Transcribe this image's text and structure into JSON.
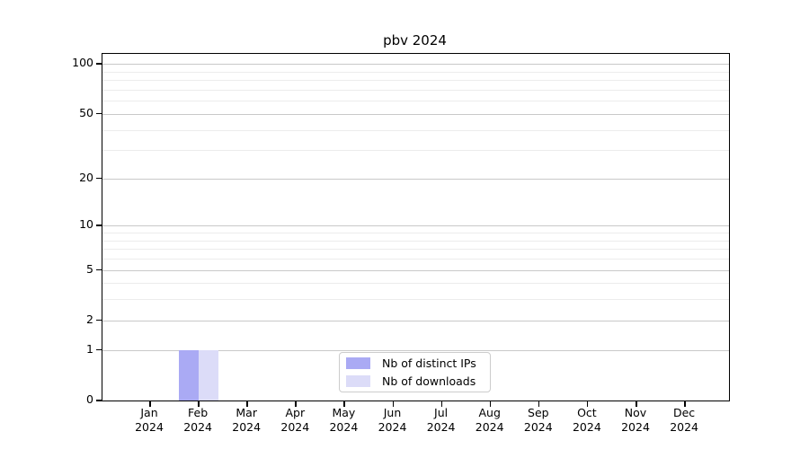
{
  "title": "pbv 2024",
  "chart_data": {
    "type": "bar",
    "title": "pbv 2024",
    "categories": [
      "Jan",
      "Feb",
      "Mar",
      "Apr",
      "May",
      "Jun",
      "Jul",
      "Aug",
      "Sep",
      "Oct",
      "Nov",
      "Dec"
    ],
    "year_label": "2024",
    "series": [
      {
        "name": "Nb of distinct IPs",
        "color": "#aaaaf4",
        "values": [
          0,
          1,
          0,
          0,
          0,
          0,
          0,
          0,
          0,
          0,
          0,
          0
        ]
      },
      {
        "name": "Nb of downloads",
        "color": "#dcdcf8",
        "values": [
          0,
          1,
          0,
          0,
          0,
          0,
          0,
          0,
          0,
          0,
          0,
          0
        ]
      }
    ],
    "yscale": "log1p",
    "ylim": [
      0,
      115
    ],
    "y_major_ticks": [
      0,
      1,
      2,
      5,
      10,
      20,
      50,
      100
    ],
    "y_minor_ticks": [
      3,
      4,
      6,
      7,
      8,
      9,
      30,
      40,
      60,
      70,
      80,
      90
    ],
    "grid": "horizontal",
    "legend_position": "lower center"
  },
  "colors": {
    "grid_major": "#c9c9c9",
    "grid_minor": "#ececec",
    "axis": "#000000",
    "legend_border": "#cccccc"
  }
}
